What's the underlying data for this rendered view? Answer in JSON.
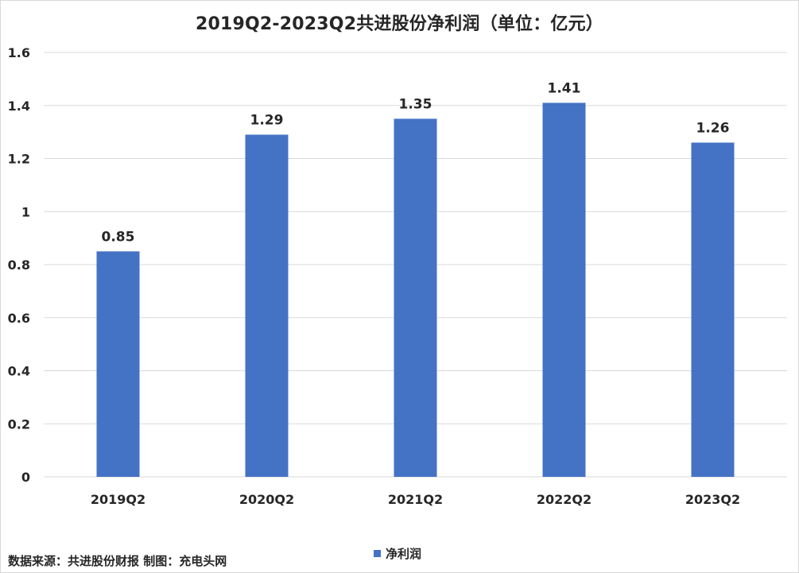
{
  "chart_data": {
    "type": "bar",
    "title": "2019Q2-2023Q2共进股份净利润（单位：亿元）",
    "categories": [
      "2019Q2",
      "2020Q2",
      "2021Q2",
      "2022Q2",
      "2023Q2"
    ],
    "series": [
      {
        "name": "净利润",
        "values": [
          0.85,
          1.29,
          1.35,
          1.41,
          1.26
        ],
        "color": "#4472c4"
      }
    ],
    "data_labels": [
      "0.85",
      "1.29",
      "1.35",
      "1.41",
      "1.26"
    ],
    "yticks": [
      "0",
      "0.2",
      "0.4",
      "0.6",
      "0.8",
      "1",
      "1.2",
      "1.4",
      "1.6"
    ],
    "ylim": [
      0,
      1.6
    ],
    "grid": true,
    "legend_position": "bottom"
  },
  "footer": {
    "source": "数据来源：共进股份财报 制图：充电头网"
  },
  "colors": {
    "bar": "#4472c4",
    "grid": "#d9d9d9",
    "text": "#262626"
  }
}
